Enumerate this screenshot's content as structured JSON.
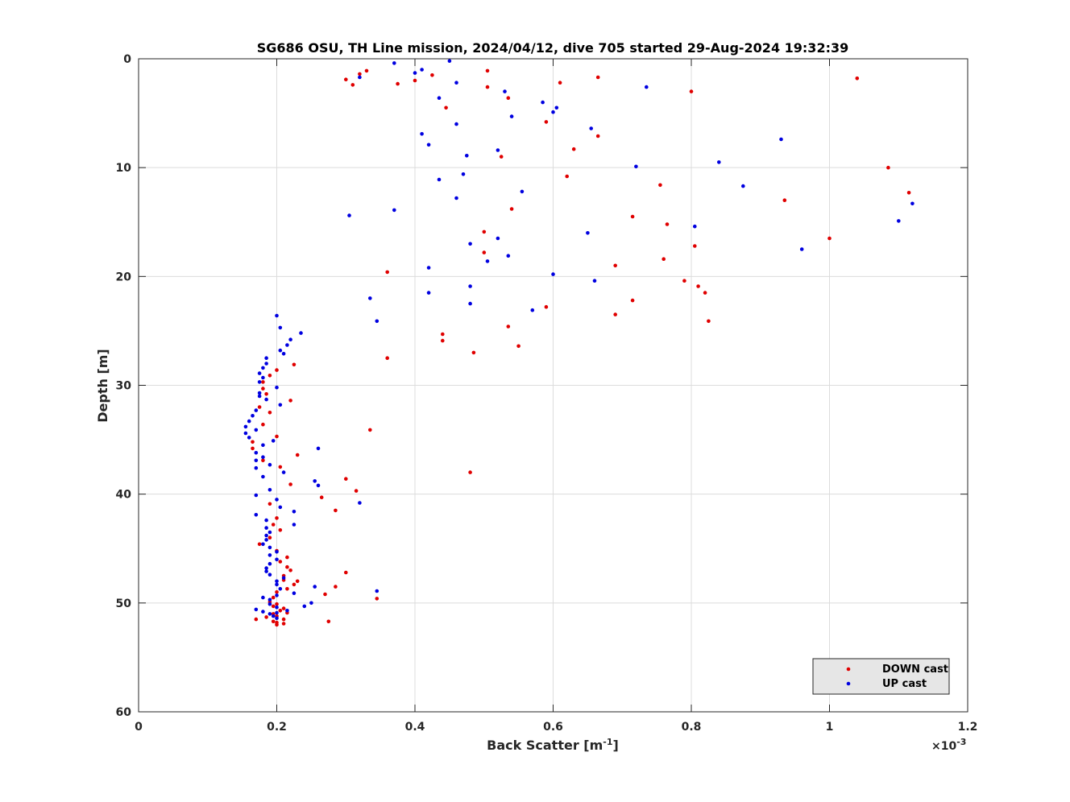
{
  "chart_data": {
    "type": "scatter",
    "title": "SG686 OSU, TH Line mission, 2024/04/12, dive 705 started 29-Aug-2024 19:32:39",
    "xlabel": "Back Scatter [m",
    "xlabel_sup": "-1",
    "xlabel_end": "]",
    "ylabel": "Depth [m]",
    "x_exponent_prefix": "×10",
    "x_exponent_sup": "-3",
    "xlim": [
      0,
      1.2
    ],
    "ylim": [
      0,
      60
    ],
    "y_reversed": true,
    "grid": true,
    "xticks": [
      "0",
      "0.2",
      "0.4",
      "0.6",
      "0.8",
      "1",
      "1.2"
    ],
    "yticks": [
      "0",
      "10",
      "20",
      "30",
      "40",
      "50",
      "60"
    ],
    "legend_position": "bottom-right",
    "colors": {
      "down": "#e00000",
      "up": "#0000e0"
    },
    "series": [
      {
        "name": "DOWN cast",
        "color": "#e00000",
        "points": [
          [
            0.3,
            1.9
          ],
          [
            0.31,
            2.4
          ],
          [
            0.32,
            1.4
          ],
          [
            0.33,
            1.1
          ],
          [
            0.375,
            2.3
          ],
          [
            0.4,
            2.0
          ],
          [
            0.425,
            1.5
          ],
          [
            0.445,
            4.5
          ],
          [
            0.505,
            1.1
          ],
          [
            0.505,
            2.6
          ],
          [
            0.535,
            3.6
          ],
          [
            0.61,
            2.2
          ],
          [
            0.665,
            1.7
          ],
          [
            1.04,
            1.8
          ],
          [
            0.8,
            3.0
          ],
          [
            0.59,
            5.8
          ],
          [
            0.665,
            7.1
          ],
          [
            0.63,
            8.3
          ],
          [
            0.525,
            9.0
          ],
          [
            0.62,
            10.8
          ],
          [
            1.085,
            10.0
          ],
          [
            0.755,
            11.6
          ],
          [
            1.115,
            12.3
          ],
          [
            0.935,
            13.0
          ],
          [
            0.54,
            13.8
          ],
          [
            0.715,
            14.5
          ],
          [
            0.765,
            15.2
          ],
          [
            0.5,
            15.9
          ],
          [
            1.0,
            16.5
          ],
          [
            0.805,
            17.2
          ],
          [
            0.5,
            17.8
          ],
          [
            0.76,
            18.4
          ],
          [
            0.69,
            19.0
          ],
          [
            0.36,
            19.6
          ],
          [
            0.79,
            20.4
          ],
          [
            0.81,
            20.9
          ],
          [
            0.82,
            21.5
          ],
          [
            0.715,
            22.2
          ],
          [
            0.59,
            22.8
          ],
          [
            0.69,
            23.5
          ],
          [
            0.825,
            24.1
          ],
          [
            0.535,
            24.6
          ],
          [
            0.44,
            25.3
          ],
          [
            0.44,
            25.9
          ],
          [
            0.55,
            26.4
          ],
          [
            0.485,
            27.0
          ],
          [
            0.36,
            27.5
          ],
          [
            0.225,
            28.1
          ],
          [
            0.2,
            28.6
          ],
          [
            0.19,
            29.1
          ],
          [
            0.18,
            29.7
          ],
          [
            0.18,
            30.3
          ],
          [
            0.185,
            30.8
          ],
          [
            0.22,
            31.4
          ],
          [
            0.175,
            32.0
          ],
          [
            0.19,
            32.5
          ],
          [
            0.18,
            33.6
          ],
          [
            0.335,
            34.1
          ],
          [
            0.2,
            34.7
          ],
          [
            0.165,
            35.2
          ],
          [
            0.165,
            35.8
          ],
          [
            0.23,
            36.4
          ],
          [
            0.18,
            36.9
          ],
          [
            0.205,
            37.5
          ],
          [
            0.48,
            38.0
          ],
          [
            0.3,
            38.6
          ],
          [
            0.22,
            39.1
          ],
          [
            0.315,
            39.7
          ],
          [
            0.265,
            40.3
          ],
          [
            0.19,
            40.9
          ],
          [
            0.285,
            41.5
          ],
          [
            0.2,
            42.2
          ],
          [
            0.195,
            42.8
          ],
          [
            0.205,
            43.3
          ],
          [
            0.19,
            44.0
          ],
          [
            0.175,
            44.6
          ],
          [
            0.2,
            45.2
          ],
          [
            0.215,
            45.8
          ],
          [
            0.205,
            46.2
          ],
          [
            0.215,
            46.7
          ],
          [
            0.22,
            47.0
          ],
          [
            0.3,
            47.2
          ],
          [
            0.21,
            47.5
          ],
          [
            0.21,
            47.9
          ],
          [
            0.23,
            48.0
          ],
          [
            0.225,
            48.3
          ],
          [
            0.285,
            48.5
          ],
          [
            0.215,
            48.7
          ],
          [
            0.27,
            49.2
          ],
          [
            0.2,
            49.0
          ],
          [
            0.195,
            49.5
          ],
          [
            0.345,
            49.6
          ],
          [
            0.19,
            49.9
          ],
          [
            0.2,
            50.1
          ],
          [
            0.195,
            50.3
          ],
          [
            0.21,
            50.5
          ],
          [
            0.205,
            50.7
          ],
          [
            0.215,
            50.9
          ],
          [
            0.195,
            51.0
          ],
          [
            0.2,
            51.2
          ],
          [
            0.185,
            51.3
          ],
          [
            0.17,
            51.5
          ],
          [
            0.21,
            51.5
          ],
          [
            0.195,
            51.7
          ],
          [
            0.2,
            51.8
          ],
          [
            0.21,
            51.9
          ],
          [
            0.2,
            52.0
          ],
          [
            0.275,
            51.7
          ]
        ]
      },
      {
        "name": "UP cast",
        "color": "#0000e0",
        "points": [
          [
            0.45,
            0.2
          ],
          [
            0.37,
            0.4
          ],
          [
            0.41,
            1.0
          ],
          [
            0.4,
            1.3
          ],
          [
            0.32,
            1.7
          ],
          [
            0.46,
            2.2
          ],
          [
            0.735,
            2.6
          ],
          [
            0.53,
            3.0
          ],
          [
            0.435,
            3.6
          ],
          [
            0.585,
            4.0
          ],
          [
            0.605,
            4.5
          ],
          [
            0.6,
            4.9
          ],
          [
            0.54,
            5.3
          ],
          [
            0.46,
            6.0
          ],
          [
            0.655,
            6.4
          ],
          [
            0.41,
            6.9
          ],
          [
            0.93,
            7.4
          ],
          [
            0.42,
            7.9
          ],
          [
            0.52,
            8.4
          ],
          [
            0.475,
            8.9
          ],
          [
            0.84,
            9.5
          ],
          [
            0.72,
            9.9
          ],
          [
            0.47,
            10.6
          ],
          [
            0.435,
            11.1
          ],
          [
            0.875,
            11.7
          ],
          [
            0.555,
            12.2
          ],
          [
            0.46,
            12.8
          ],
          [
            0.37,
            13.9
          ],
          [
            0.305,
            14.4
          ],
          [
            1.12,
            13.3
          ],
          [
            1.1,
            14.9
          ],
          [
            0.805,
            15.4
          ],
          [
            0.65,
            16.0
          ],
          [
            0.52,
            16.5
          ],
          [
            0.48,
            17.0
          ],
          [
            0.96,
            17.5
          ],
          [
            0.535,
            18.1
          ],
          [
            0.505,
            18.6
          ],
          [
            0.42,
            19.2
          ],
          [
            0.6,
            19.8
          ],
          [
            0.66,
            20.4
          ],
          [
            0.48,
            20.9
          ],
          [
            0.42,
            21.5
          ],
          [
            0.335,
            22.0
          ],
          [
            0.48,
            22.5
          ],
          [
            0.57,
            23.1
          ],
          [
            0.2,
            23.6
          ],
          [
            0.345,
            24.1
          ],
          [
            0.205,
            24.7
          ],
          [
            0.235,
            25.2
          ],
          [
            0.22,
            25.8
          ],
          [
            0.215,
            26.3
          ],
          [
            0.205,
            26.8
          ],
          [
            0.21,
            27.1
          ],
          [
            0.185,
            27.5
          ],
          [
            0.185,
            28.0
          ],
          [
            0.18,
            28.4
          ],
          [
            0.175,
            28.9
          ],
          [
            0.18,
            29.3
          ],
          [
            0.175,
            29.7
          ],
          [
            0.2,
            30.2
          ],
          [
            0.175,
            30.7
          ],
          [
            0.175,
            31.0
          ],
          [
            0.185,
            31.3
          ],
          [
            0.205,
            31.8
          ],
          [
            0.17,
            32.3
          ],
          [
            0.165,
            32.8
          ],
          [
            0.16,
            33.3
          ],
          [
            0.155,
            33.8
          ],
          [
            0.17,
            34.1
          ],
          [
            0.155,
            34.4
          ],
          [
            0.16,
            34.8
          ],
          [
            0.195,
            35.1
          ],
          [
            0.18,
            35.5
          ],
          [
            0.26,
            35.8
          ],
          [
            0.17,
            36.2
          ],
          [
            0.18,
            36.6
          ],
          [
            0.17,
            36.9
          ],
          [
            0.19,
            37.3
          ],
          [
            0.17,
            37.6
          ],
          [
            0.21,
            38.0
          ],
          [
            0.18,
            38.4
          ],
          [
            0.255,
            38.8
          ],
          [
            0.26,
            39.2
          ],
          [
            0.19,
            39.6
          ],
          [
            0.17,
            40.1
          ],
          [
            0.2,
            40.5
          ],
          [
            0.32,
            40.8
          ],
          [
            0.205,
            41.2
          ],
          [
            0.225,
            41.6
          ],
          [
            0.17,
            41.9
          ],
          [
            0.185,
            42.4
          ],
          [
            0.225,
            42.8
          ],
          [
            0.185,
            43.1
          ],
          [
            0.19,
            43.5
          ],
          [
            0.185,
            43.8
          ],
          [
            0.185,
            44.2
          ],
          [
            0.18,
            44.6
          ],
          [
            0.19,
            44.9
          ],
          [
            0.2,
            45.3
          ],
          [
            0.19,
            45.6
          ],
          [
            0.2,
            46.0
          ],
          [
            0.19,
            46.4
          ],
          [
            0.185,
            46.8
          ],
          [
            0.185,
            47.1
          ],
          [
            0.19,
            47.4
          ],
          [
            0.21,
            47.7
          ],
          [
            0.2,
            48.0
          ],
          [
            0.2,
            48.3
          ],
          [
            0.255,
            48.5
          ],
          [
            0.205,
            48.7
          ],
          [
            0.345,
            48.9
          ],
          [
            0.225,
            49.1
          ],
          [
            0.2,
            49.3
          ],
          [
            0.18,
            49.5
          ],
          [
            0.19,
            49.7
          ],
          [
            0.25,
            50.0
          ],
          [
            0.19,
            50.1
          ],
          [
            0.24,
            50.3
          ],
          [
            0.2,
            50.4
          ],
          [
            0.17,
            50.6
          ],
          [
            0.215,
            50.7
          ],
          [
            0.18,
            50.8
          ],
          [
            0.2,
            50.9
          ],
          [
            0.19,
            51.0
          ],
          [
            0.195,
            51.2
          ],
          [
            0.2,
            51.4
          ]
        ]
      }
    ]
  }
}
